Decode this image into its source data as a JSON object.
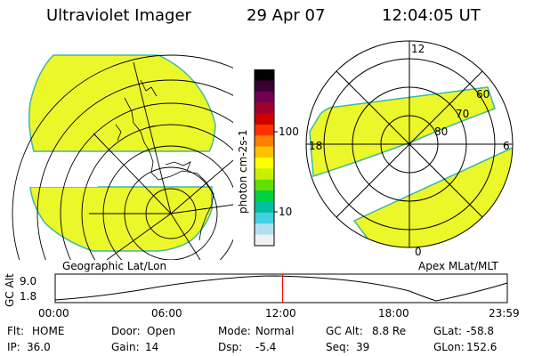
{
  "header": {
    "instrument": "Ultraviolet Imager",
    "date": "29 Apr 07",
    "time": "12:04:05 UT"
  },
  "left_panel": {
    "caption": "Geographic Lat/Lon"
  },
  "right_panel": {
    "caption": "Apex MLat/MLT",
    "mlt_labels": [
      "12",
      "18",
      "6",
      "0"
    ],
    "mlat_labels": [
      "60",
      "70",
      "80"
    ]
  },
  "colorbar": {
    "unit_label": "photon cm-2s-1",
    "tick_labels": [
      "100",
      "10"
    ],
    "colors": [
      "#000000",
      "#3a0030",
      "#700050",
      "#a00030",
      "#d00000",
      "#ff3000",
      "#ff8000",
      "#ffc000",
      "#ffff00",
      "#c8f000",
      "#60e000",
      "#00d040",
      "#00c0a0",
      "#40d0e0",
      "#b0e0f0",
      "#f0f0f0"
    ]
  },
  "altitude_plot": {
    "ylabel": "GC Alt",
    "y_ticks": [
      "9.0",
      "1.8"
    ],
    "x_ticks": [
      "00:00",
      "06:00",
      "12:00",
      "18:00",
      "23:59"
    ],
    "current_time_marker_hours": 12.07,
    "current_time_marker_color": "#ff0000"
  },
  "status": {
    "row1": [
      {
        "key": "Flt:",
        "value": "HOME"
      },
      {
        "key": "Door:",
        "value": "Open"
      },
      {
        "key": "Mode:",
        "value": "Normal"
      },
      {
        "key": "GC Alt:",
        "value": "8.8 Re"
      },
      {
        "key": "GLat:",
        "value": "-58.8"
      }
    ],
    "row2": [
      {
        "key": "IP:",
        "value": "36.0"
      },
      {
        "key": "Gain:",
        "value": "14"
      },
      {
        "key": "Dsp:",
        "value": "-5.4"
      },
      {
        "key": "Seq:",
        "value": "39"
      },
      {
        "key": "GLon:",
        "value": "152.6"
      }
    ]
  },
  "colors": {
    "image_fill": "#ecf72a",
    "image_edge": "#3fb7a5"
  }
}
